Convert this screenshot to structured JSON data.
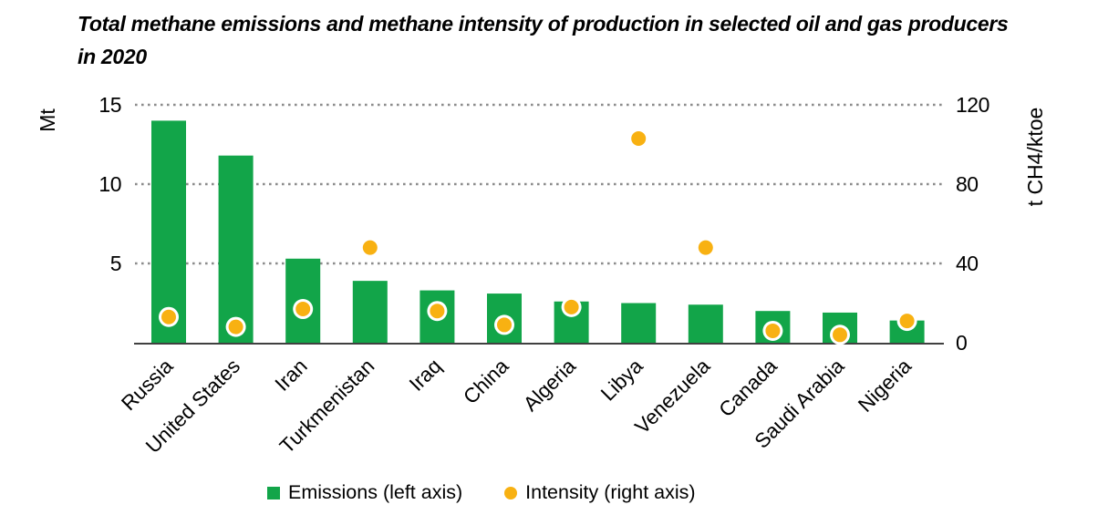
{
  "title_line1": "Total methane emissions and methane intensity of production in selected oil and gas producers",
  "title_line2": "in 2020",
  "chart_data": {
    "type": "bar",
    "subtype": "combo bar + scatter, dual axis",
    "title": "Total methane emissions and methane intensity of production in selected oil and gas producers in 2020",
    "categories": [
      "Russia",
      "United States",
      "Iran",
      "Turkmenistan",
      "Iraq",
      "China",
      "Algeria",
      "Libya",
      "Venezuela",
      "Canada",
      "Saudi Arabia",
      "Nigeria"
    ],
    "series": [
      {
        "name": "Emissions (left axis)",
        "type": "bar",
        "axis": "left",
        "unit": "Mt",
        "values": [
          14.0,
          11.8,
          5.3,
          3.9,
          3.3,
          3.1,
          2.6,
          2.5,
          2.4,
          2.0,
          1.9,
          1.4
        ]
      },
      {
        "name": "Intensity (right axis)",
        "type": "scatter",
        "axis": "right",
        "unit": "t CH4/ktoe",
        "values": [
          13,
          8,
          17,
          48,
          16,
          9,
          18,
          103,
          48,
          6,
          4,
          11
        ]
      }
    ],
    "left_axis": {
      "label": "Mt",
      "ticks": [
        15,
        10,
        5
      ],
      "range": [
        0,
        15
      ]
    },
    "right_axis": {
      "label": "t CH4/ktoe",
      "ticks": [
        120,
        80,
        40,
        0
      ],
      "range": [
        0,
        120
      ]
    },
    "grid": "horizontal dotted gridlines at 5/10/15 Mt (40/80/120 t CH4/ktoe)",
    "legend_position": "bottom center"
  },
  "legend": {
    "emissions_label": "Emissions (left axis)",
    "intensity_label": "Intensity (right axis)"
  },
  "colors": {
    "bar": "#12a549",
    "dot": "#f8b112",
    "dot_ring": "#ffffff",
    "grid": "#8c8c8c",
    "axis_line": "#000000",
    "text": "#000000"
  }
}
